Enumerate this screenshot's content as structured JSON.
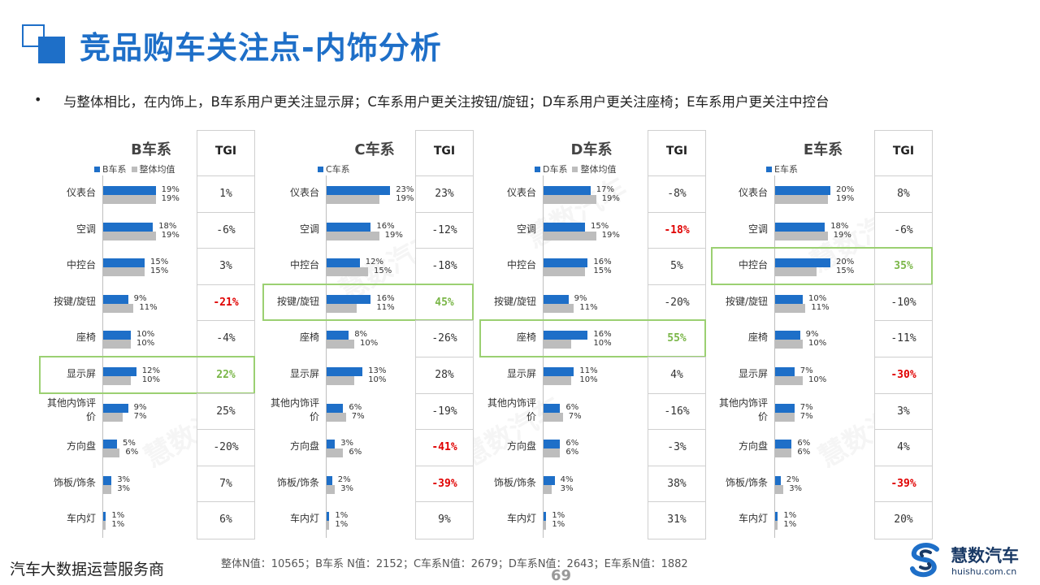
{
  "page": {
    "title": "竞品购车关注点-内饰分析",
    "bullet_marker": "•",
    "bullet": "与整体相比，在内饰上，B车系用户更关注显示屏；C车系用户更关注按钮/旋钮；D车系用户更关注座椅；E车系用户更关注中控台",
    "footer_left": "汽车大数据运营服务商",
    "footer_note": "整体N值：10565；B车系 N值：2152；C车系N值：2679；D车系N值：2643；E车系N值：1882",
    "page_number": "69",
    "brand_name": "慧数汽车",
    "brand_url": "huishu.com.cn",
    "watermark": "慧数汽车",
    "colors": {
      "brand": "#1e6fc8",
      "overall": "#bdbdbd",
      "negative": "#e00000",
      "positive": "#7ab648"
    }
  },
  "chart_data": [
    {
      "type": "bar",
      "title": "B车系",
      "categories": [
        "仪表台",
        "空调",
        "中控台",
        "按键/旋钮",
        "座椅",
        "显示屏",
        "其他内饰评价",
        "方向盘",
        "饰板/饰条",
        "车内灯"
      ],
      "series": [
        {
          "name": "B车系",
          "values": [
            19,
            18,
            15,
            9,
            10,
            12,
            9,
            5,
            3,
            1
          ],
          "labels": [
            "19%",
            "18%",
            "15%",
            "9%",
            "10%",
            "12%",
            "9%",
            "5%",
            "3%",
            "1%"
          ]
        },
        {
          "name": "整体均值",
          "values": [
            19,
            19,
            15,
            11,
            10,
            10,
            7,
            6,
            3,
            1
          ],
          "labels": [
            "19%",
            "19%",
            "15%",
            "11%",
            "10%",
            "10%",
            "7%",
            "6%",
            "3%",
            "1%"
          ]
        }
      ],
      "legend": [
        "B车系",
        "整体均值"
      ],
      "tgi_header": "TGI",
      "tgi": [
        "1%",
        "-6%",
        "3%",
        "-21%",
        "-4%",
        "22%",
        "25%",
        "-20%",
        "7%",
        "6%"
      ],
      "highlight": "显示屏"
    },
    {
      "type": "bar",
      "title": "C车系",
      "categories": [
        "仪表台",
        "空调",
        "中控台",
        "按键/旋钮",
        "座椅",
        "显示屏",
        "其他内饰评价",
        "方向盘",
        "饰板/饰条",
        "车内灯"
      ],
      "series": [
        {
          "name": "C车系",
          "values": [
            23,
            16,
            12,
            16,
            8,
            13,
            6,
            3,
            2,
            1
          ],
          "labels": [
            "23%",
            "16%",
            "12%",
            "16%",
            "8%",
            "13%",
            "6%",
            "3%",
            "2%",
            "1%"
          ]
        },
        {
          "name": "",
          "values": [
            19,
            19,
            15,
            11,
            10,
            10,
            7,
            6,
            3,
            1
          ],
          "labels": [
            "19%",
            "19%",
            "15%",
            "11%",
            "10%",
            "10%",
            "7%",
            "6%",
            "3%",
            "1%"
          ]
        }
      ],
      "legend": [
        "C车系"
      ],
      "tgi_header": "TGI",
      "tgi": [
        "23%",
        "-12%",
        "-18%",
        "45%",
        "-26%",
        "28%",
        "-19%",
        "-41%",
        "-39%",
        "9%"
      ],
      "highlight": "按键/旋钮"
    },
    {
      "type": "bar",
      "title": "D车系",
      "categories": [
        "仪表台",
        "空调",
        "中控台",
        "按键/旋钮",
        "座椅",
        "显示屏",
        "其他内饰评价",
        "方向盘",
        "饰板/饰条",
        "车内灯"
      ],
      "series": [
        {
          "name": "D车系",
          "values": [
            17,
            15,
            16,
            9,
            16,
            11,
            6,
            6,
            4,
            1
          ],
          "labels": [
            "17%",
            "15%",
            "16%",
            "9%",
            "16%",
            "11%",
            "6%",
            "6%",
            "4%",
            "1%"
          ]
        },
        {
          "name": "整体均值",
          "values": [
            19,
            19,
            15,
            11,
            10,
            10,
            7,
            6,
            3,
            1
          ],
          "labels": [
            "19%",
            "19%",
            "15%",
            "11%",
            "10%",
            "10%",
            "7%",
            "6%",
            "3%",
            "1%"
          ]
        }
      ],
      "legend": [
        "D车系",
        "整体均值"
      ],
      "tgi_header": "TGI",
      "tgi": [
        "-8%",
        "-18%",
        "5%",
        "-20%",
        "55%",
        "4%",
        "-16%",
        "-3%",
        "38%",
        "31%"
      ],
      "highlight": "座椅"
    },
    {
      "type": "bar",
      "title": "E车系",
      "categories": [
        "仪表台",
        "空调",
        "中控台",
        "按键/旋钮",
        "座椅",
        "显示屏",
        "其他内饰评价",
        "方向盘",
        "饰板/饰条",
        "车内灯"
      ],
      "series": [
        {
          "name": "E车系",
          "values": [
            20,
            18,
            20,
            10,
            9,
            7,
            7,
            6,
            2,
            1
          ],
          "labels": [
            "20%",
            "18%",
            "20%",
            "10%",
            "9%",
            "7%",
            "7%",
            "6%",
            "2%",
            "1%"
          ]
        },
        {
          "name": "",
          "values": [
            19,
            19,
            15,
            11,
            10,
            10,
            7,
            6,
            3,
            1
          ],
          "labels": [
            "19%",
            "19%",
            "15%",
            "11%",
            "10%",
            "10%",
            "7%",
            "6%",
            "3%",
            "1%"
          ]
        }
      ],
      "legend": [
        "E车系"
      ],
      "tgi_header": "TGI",
      "tgi": [
        "8%",
        "-6%",
        "35%",
        "-10%",
        "-11%",
        "-30%",
        "3%",
        "4%",
        "-39%",
        "20%"
      ],
      "highlight": "中控台"
    }
  ]
}
